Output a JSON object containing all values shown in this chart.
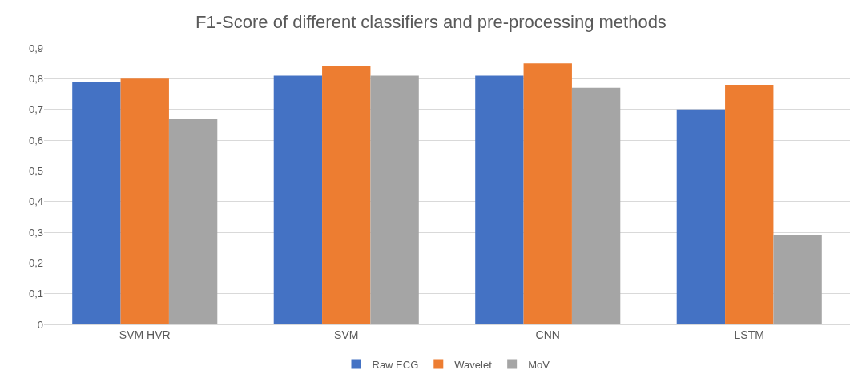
{
  "chart_data": {
    "type": "bar",
    "title": "F1-Score of different classifiers and pre-processing methods",
    "categories": [
      "SVM HVR",
      "SVM",
      "CNN",
      "LSTM"
    ],
    "series": [
      {
        "name": "Raw ECG",
        "color": "#4472c4",
        "values": [
          0.79,
          0.81,
          0.81,
          0.7
        ]
      },
      {
        "name": "Wavelet",
        "color": "#ed7d31",
        "values": [
          0.8,
          0.84,
          0.85,
          0.78
        ]
      },
      {
        "name": "MoV",
        "color": "#a5a5a5",
        "values": [
          0.67,
          0.81,
          0.77,
          0.29
        ]
      }
    ],
    "ylim": [
      0,
      0.9
    ],
    "yticks": [
      0,
      {
        "value": 0.1,
        "label": "0,1"
      },
      {
        "value": 0.2,
        "label": "0,2"
      },
      {
        "value": 0.3,
        "label": "0,3"
      },
      {
        "value": 0.4,
        "label": "0,4"
      },
      {
        "value": 0.5,
        "label": "0,5"
      },
      {
        "value": 0.6,
        "label": "0,6"
      },
      {
        "value": 0.7,
        "label": "0,7"
      },
      {
        "value": 0.8,
        "label": "0,8"
      },
      {
        "value": 0.9,
        "label": "0,9"
      }
    ],
    "grid": "y",
    "legend": "bottom"
  }
}
